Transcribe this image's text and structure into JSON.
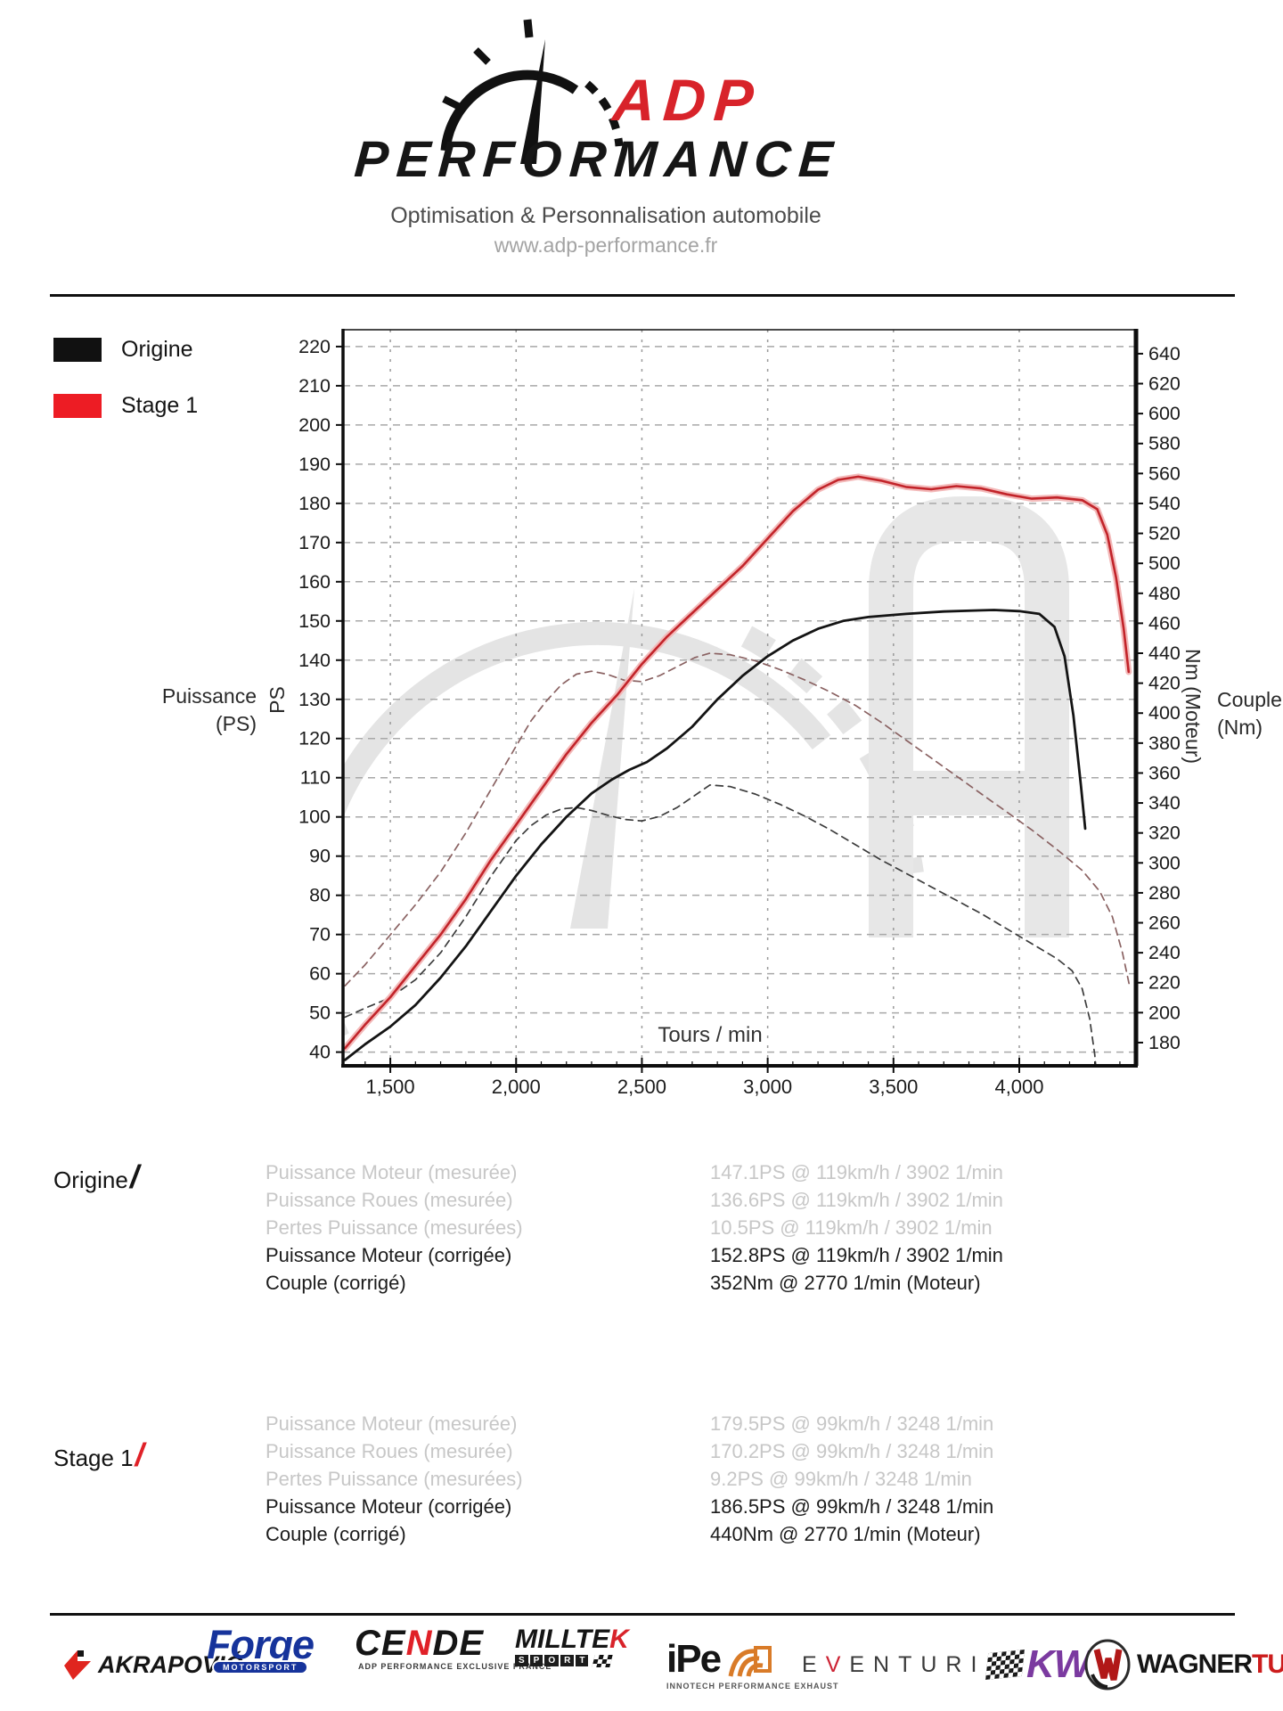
{
  "header": {
    "brand_top": "ADP",
    "brand_bottom": "PERFORMANCE",
    "tagline": "Optimisation & Personnalisation automobile",
    "website": "www.adp-performance.fr",
    "accent_color": "#d8232a"
  },
  "chart_data": {
    "type": "line",
    "title": "",
    "grid": true,
    "legend_position": "top-left",
    "legend": [
      {
        "label": "Origine",
        "color": "#111111"
      },
      {
        "label": "Stage 1",
        "color": "#ed1c24"
      }
    ],
    "x_axis": {
      "label": "Tours / min",
      "range": [
        1312,
        4464
      ],
      "ticks": [
        {
          "v": 1500,
          "label": "1,500"
        },
        {
          "v": 2000,
          "label": "2,000"
        },
        {
          "v": 2500,
          "label": "2,500"
        },
        {
          "v": 3000,
          "label": "3,000"
        },
        {
          "v": 3500,
          "label": "3,500"
        },
        {
          "v": 4000,
          "label": "4,000"
        }
      ]
    },
    "y_left": {
      "label": "PS",
      "side_label_line1": "Puissance",
      "side_label_line2": "(PS)",
      "range": [
        36.5,
        224.3
      ],
      "ticks": [
        40,
        50,
        60,
        70,
        80,
        90,
        100,
        110,
        120,
        130,
        140,
        150,
        160,
        170,
        180,
        190,
        200,
        210,
        220
      ]
    },
    "y_right": {
      "label": "Nm (Moteur)",
      "side_label_line1": "Couple",
      "side_label_line2": "(Nm)",
      "range": [
        164.5,
        656
      ],
      "ticks": [
        180,
        200,
        220,
        240,
        260,
        280,
        300,
        320,
        340,
        360,
        380,
        400,
        420,
        440,
        460,
        480,
        500,
        520,
        540,
        560,
        580,
        600,
        620,
        640
      ]
    },
    "series": [
      {
        "name": "Stage 1 Couple (Nm)",
        "axis": "right",
        "color": "#8a6262",
        "width": 1.7,
        "dash": "8 6",
        "points": [
          [
            1320,
            218
          ],
          [
            1400,
            232
          ],
          [
            1500,
            252
          ],
          [
            1600,
            272
          ],
          [
            1700,
            294
          ],
          [
            1800,
            320
          ],
          [
            1900,
            349
          ],
          [
            2000,
            378
          ],
          [
            2060,
            395
          ],
          [
            2120,
            408
          ],
          [
            2180,
            419
          ],
          [
            2240,
            426
          ],
          [
            2300,
            428
          ],
          [
            2360,
            426
          ],
          [
            2430,
            422
          ],
          [
            2500,
            421
          ],
          [
            2570,
            425
          ],
          [
            2640,
            431
          ],
          [
            2710,
            437
          ],
          [
            2770,
            440
          ],
          [
            2850,
            439
          ],
          [
            2950,
            435
          ],
          [
            3050,
            429
          ],
          [
            3150,
            422
          ],
          [
            3250,
            414
          ],
          [
            3350,
            405
          ],
          [
            3450,
            394
          ],
          [
            3550,
            382
          ],
          [
            3650,
            370
          ],
          [
            3750,
            358
          ],
          [
            3850,
            346
          ],
          [
            3950,
            334
          ],
          [
            4050,
            322
          ],
          [
            4150,
            309
          ],
          [
            4250,
            295
          ],
          [
            4320,
            281
          ],
          [
            4370,
            264
          ],
          [
            4410,
            240
          ],
          [
            4438,
            218
          ]
        ]
      },
      {
        "name": "Origine Couple (Nm)",
        "axis": "right",
        "color": "#3c3c3c",
        "width": 1.7,
        "dash": "8 6",
        "points": [
          [
            1320,
            197
          ],
          [
            1400,
            203
          ],
          [
            1500,
            210
          ],
          [
            1600,
            222
          ],
          [
            1700,
            240
          ],
          [
            1800,
            264
          ],
          [
            1900,
            291
          ],
          [
            2000,
            315
          ],
          [
            2060,
            325
          ],
          [
            2120,
            332
          ],
          [
            2180,
            336
          ],
          [
            2240,
            337
          ],
          [
            2300,
            335
          ],
          [
            2360,
            332
          ],
          [
            2430,
            329
          ],
          [
            2500,
            328
          ],
          [
            2570,
            331
          ],
          [
            2640,
            337
          ],
          [
            2710,
            345
          ],
          [
            2770,
            352
          ],
          [
            2850,
            351
          ],
          [
            2950,
            346
          ],
          [
            3050,
            339
          ],
          [
            3150,
            331
          ],
          [
            3250,
            322
          ],
          [
            3350,
            312
          ],
          [
            3450,
            302
          ],
          [
            3550,
            293
          ],
          [
            3650,
            284
          ],
          [
            3750,
            275
          ],
          [
            3850,
            266
          ],
          [
            3950,
            256
          ],
          [
            4050,
            246
          ],
          [
            4150,
            236
          ],
          [
            4210,
            228
          ],
          [
            4250,
            216
          ],
          [
            4280,
            196
          ],
          [
            4300,
            172
          ],
          [
            4313,
            148
          ]
        ]
      },
      {
        "name": "Origine Puissance (PS)",
        "axis": "left",
        "color": "#141414",
        "width": 2.8,
        "dash": null,
        "points": [
          [
            1320,
            38
          ],
          [
            1400,
            42
          ],
          [
            1500,
            46.5
          ],
          [
            1600,
            52
          ],
          [
            1700,
            59
          ],
          [
            1800,
            67
          ],
          [
            1900,
            76
          ],
          [
            2000,
            85
          ],
          [
            2100,
            93
          ],
          [
            2200,
            100
          ],
          [
            2300,
            106
          ],
          [
            2380,
            109.5
          ],
          [
            2450,
            112
          ],
          [
            2520,
            114
          ],
          [
            2600,
            117.5
          ],
          [
            2700,
            123
          ],
          [
            2800,
            130
          ],
          [
            2900,
            136
          ],
          [
            3000,
            141
          ],
          [
            3100,
            145
          ],
          [
            3200,
            148
          ],
          [
            3300,
            150
          ],
          [
            3400,
            151
          ],
          [
            3550,
            151.8
          ],
          [
            3700,
            152.4
          ],
          [
            3850,
            152.7
          ],
          [
            3900,
            152.8
          ],
          [
            4000,
            152.5
          ],
          [
            4080,
            151.8
          ],
          [
            4140,
            148.5
          ],
          [
            4180,
            141
          ],
          [
            4215,
            126
          ],
          [
            4245,
            108
          ],
          [
            4262,
            97
          ]
        ]
      },
      {
        "name": "Stage 1 Puissance (PS)",
        "axis": "left",
        "color": "#c2242a",
        "halo": "#f3b9b9",
        "width": 2.6,
        "dash": null,
        "points": [
          [
            1320,
            41
          ],
          [
            1400,
            47
          ],
          [
            1500,
            54
          ],
          [
            1600,
            62
          ],
          [
            1700,
            70
          ],
          [
            1800,
            79
          ],
          [
            1900,
            89
          ],
          [
            2000,
            98
          ],
          [
            2100,
            107
          ],
          [
            2200,
            116
          ],
          [
            2300,
            124
          ],
          [
            2400,
            131
          ],
          [
            2500,
            139
          ],
          [
            2600,
            146
          ],
          [
            2700,
            152
          ],
          [
            2800,
            158
          ],
          [
            2900,
            164
          ],
          [
            3000,
            171
          ],
          [
            3100,
            178
          ],
          [
            3200,
            183.5
          ],
          [
            3280,
            186
          ],
          [
            3360,
            186.8
          ],
          [
            3450,
            185.8
          ],
          [
            3550,
            184.2
          ],
          [
            3650,
            183.6
          ],
          [
            3750,
            184.4
          ],
          [
            3850,
            183.8
          ],
          [
            3950,
            182.3
          ],
          [
            4050,
            181.2
          ],
          [
            4150,
            181.5
          ],
          [
            4250,
            180.8
          ],
          [
            4310,
            178.5
          ],
          [
            4350,
            172
          ],
          [
            4385,
            161
          ],
          [
            4415,
            148
          ],
          [
            4435,
            137
          ]
        ]
      }
    ]
  },
  "results": [
    {
      "group": "Origine",
      "slash_color": "#151515",
      "rows": [
        {
          "label": "Puissance Moteur (mesurée)",
          "value": "147.1PS @ 119km/h / 3902 1/min",
          "muted": true
        },
        {
          "label": "Puissance Roues (mesurée)",
          "value": "136.6PS @ 119km/h / 3902 1/min",
          "muted": true
        },
        {
          "label": "Pertes Puissance (mesurées)",
          "value": "10.5PS @ 119km/h / 3902 1/min",
          "muted": true
        },
        {
          "label": "Puissance Moteur (corrigée)",
          "value": "152.8PS @ 119km/h / 3902 1/min",
          "muted": false
        },
        {
          "label": "Couple (corrigé)",
          "value": "352Nm @ 2770 1/min (Moteur)",
          "muted": false
        }
      ]
    },
    {
      "group": "Stage 1",
      "slash_color": "#e02128",
      "rows": [
        {
          "label": "Puissance Moteur (mesurée)",
          "value": "179.5PS @ 99km/h / 3248 1/min",
          "muted": true
        },
        {
          "label": "Puissance Roues (mesurée)",
          "value": "170.2PS @ 99km/h / 3248 1/min",
          "muted": true
        },
        {
          "label": "Pertes Puissance (mesurées)",
          "value": "9.2PS @ 99km/h / 3248 1/min",
          "muted": true
        },
        {
          "label": "Puissance Moteur (corrigée)",
          "value": "186.5PS @ 99km/h / 3248 1/min",
          "muted": false
        },
        {
          "label": "Couple (corrigé)",
          "value": "440Nm @ 2770 1/min (Moteur)",
          "muted": false
        }
      ]
    }
  ],
  "footer": {
    "logos": [
      {
        "id": "akrapovic",
        "name": "AKRAPOVIČ"
      },
      {
        "id": "forge",
        "name": "Forge",
        "sub": "MOTORSPORT"
      },
      {
        "id": "cende",
        "parts": [
          {
            "t": "CE",
            "c": "#151515"
          },
          {
            "t": "N",
            "c": "#e02128"
          },
          {
            "t": "DE",
            "c": "#151515"
          }
        ],
        "sub": "ADP PERFORMANCE EXCLUSIVE FRANCE"
      },
      {
        "id": "milltek",
        "parts": [
          {
            "t": "MILLTE",
            "c": "#151515"
          },
          {
            "t": "K",
            "c": "#d8232a"
          }
        ],
        "sub": "SPORT"
      },
      {
        "id": "ipe",
        "name": "iPe",
        "sub": "INNOTECH PERFORMANCE EXHAUST"
      },
      {
        "id": "eventuri",
        "parts": [
          {
            "t": "E",
            "c": "#3a3a3a"
          },
          {
            "t": "V",
            "c": "#cc2233"
          },
          {
            "t": "ENTURI",
            "c": "#3a3a3a"
          }
        ]
      },
      {
        "id": "kw",
        "name": "KW."
      },
      {
        "id": "wagner",
        "parts": [
          {
            "t": "WAGNER",
            "c": "#151515"
          },
          {
            "t": "TUNING",
            "c": "#cc1c1c"
          }
        ]
      }
    ]
  }
}
